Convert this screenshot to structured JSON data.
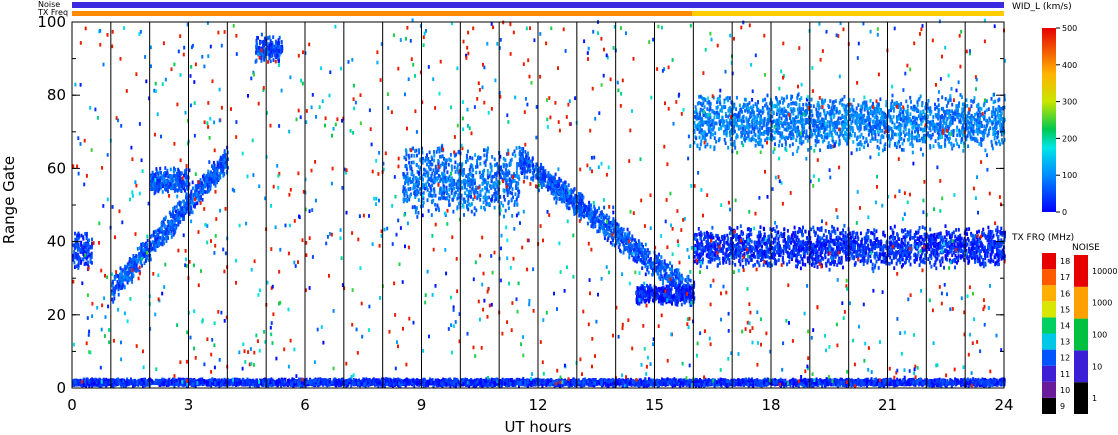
{
  "chart_data": {
    "type": "scatter",
    "xlabel": "UT hours",
    "ylabel": "Range Gate",
    "xlim": [
      0,
      24
    ],
    "ylim": [
      0,
      100
    ],
    "x_ticks": [
      "0",
      "3",
      "6",
      "9",
      "12",
      "15",
      "18",
      "21",
      "24"
    ],
    "y_ticks": [
      "0",
      "20",
      "40",
      "60",
      "80",
      "100"
    ],
    "x_minor_step": 1,
    "y_minor_step": 10,
    "hour_lines": [
      1,
      2,
      3,
      4,
      5,
      6,
      7,
      8,
      9,
      10,
      11,
      12,
      13,
      14,
      15,
      16,
      17,
      18,
      19,
      20,
      21,
      22,
      23
    ],
    "top_strips": {
      "noise_label": "Noise",
      "txfreq_label": "TX Freq",
      "noise_color": "#3a2ae0",
      "txfreq_color_before_16h": "#ff8c00",
      "txfreq_color_after_16h": "#ffcc00"
    },
    "width_colorbar": {
      "title": "WID_L (km/s)",
      "ticks": [
        "0",
        "100",
        "200",
        "300",
        "400",
        "500"
      ],
      "range": [
        0,
        500
      ]
    },
    "txfreq_colorbar": {
      "title": "TX FRQ (MHz)",
      "ticks": [
        "9",
        "10",
        "11",
        "12",
        "13",
        "14",
        "15",
        "16",
        "17",
        "18"
      ],
      "colors": [
        "#000000",
        "#6a1b9a",
        "#3f1fd6",
        "#0055ff",
        "#00c8e6",
        "#00d060",
        "#d8e600",
        "#ffb000",
        "#ff5a00",
        "#e60000"
      ]
    },
    "noise_colorbar": {
      "title": "NOISE",
      "ticks": [
        "1",
        "10",
        "100",
        "1000",
        "10000"
      ],
      "colors": [
        "#000000",
        "#3a1fd6",
        "#00c040",
        "#ffa000",
        "#e60000"
      ]
    },
    "series": [
      {
        "hour_range": [
          0.0,
          0.5
        ],
        "gate_center": 37,
        "gate_spread": 6,
        "dominant_width_kms": 40
      },
      {
        "hour_range": [
          1.0,
          4.0
        ],
        "gate_start": 26,
        "gate_end": 62,
        "dominant_width_kms": 60
      },
      {
        "hour_range": [
          2.0,
          3.0
        ],
        "gate_center": 56,
        "gate_spread": 4,
        "dominant_width_kms": 60
      },
      {
        "hour_range": [
          4.7,
          5.4
        ],
        "gate_center": 92,
        "gate_spread": 4,
        "dominant_width_kms": 50
      },
      {
        "hour_range": [
          8.5,
          11.5
        ],
        "gate_center": 56,
        "gate_spread": 10,
        "dominant_width_kms": 80
      },
      {
        "hour_range": [
          11.5,
          16.0
        ],
        "gate_start": 62,
        "gate_end": 25,
        "dominant_width_kms": 60
      },
      {
        "hour_range": [
          14.5,
          16.0
        ],
        "gate_center": 25,
        "gate_spread": 3,
        "dominant_width_kms": 20
      },
      {
        "hour_range": [
          16.0,
          24.0
        ],
        "gate_center": 38,
        "gate_spread": 6,
        "dominant_width_kms": 30
      },
      {
        "hour_range": [
          16.0,
          24.0
        ],
        "gate_center": 72,
        "gate_spread": 8,
        "dominant_width_kms": 90
      },
      {
        "hour_range": [
          0.0,
          24.0
        ],
        "gate_center": 1,
        "gate_spread": 1,
        "dominant_width_kms": 30
      }
    ]
  }
}
